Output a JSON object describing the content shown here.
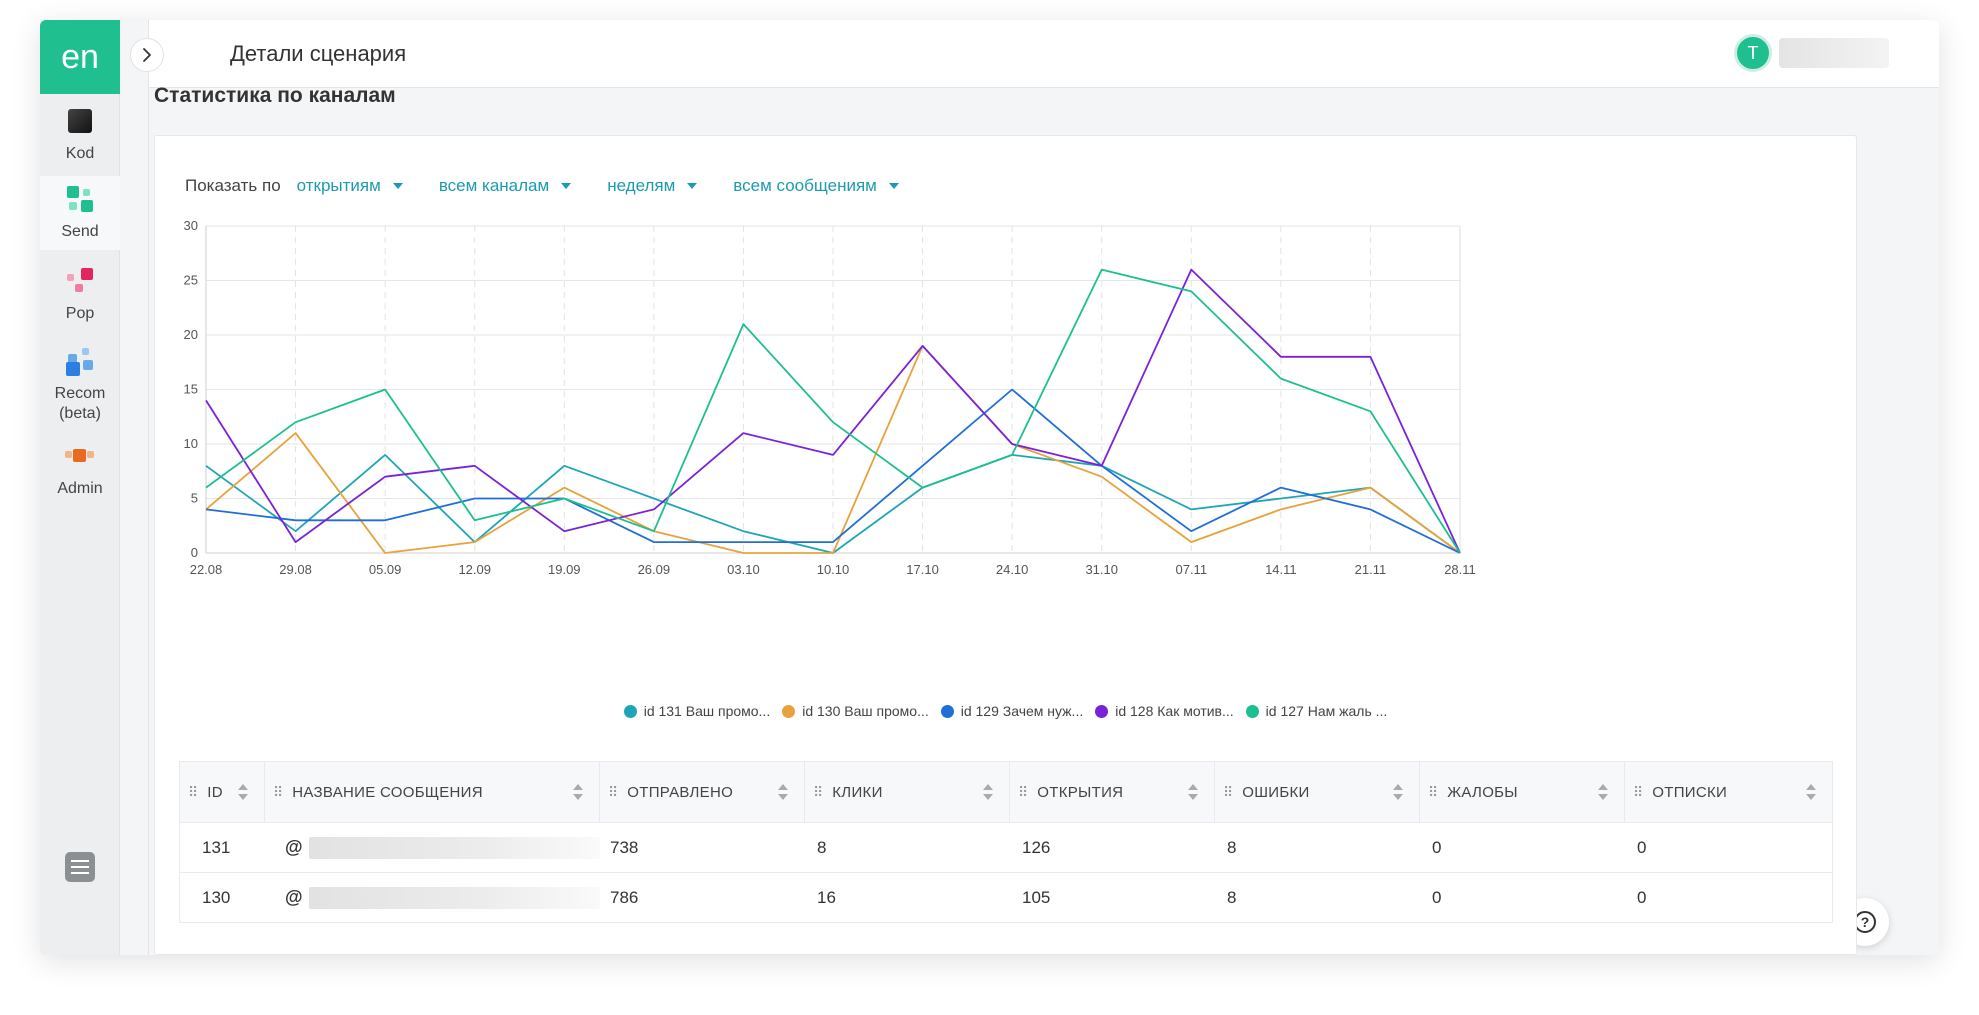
{
  "app": {
    "logo": "en",
    "page_title": "Детали сценария",
    "avatar_letter": "T"
  },
  "sidebar": {
    "items": [
      {
        "label": "Kod",
        "icon": "kod-icon"
      },
      {
        "label": "Send",
        "icon": "send-icon"
      },
      {
        "label": "Pop",
        "icon": "pop-icon"
      },
      {
        "label": "Recom\n(beta)",
        "icon": "recom-icon"
      },
      {
        "label": "Admin",
        "icon": "admin-icon"
      }
    ]
  },
  "section": {
    "title": "Статистика по каналам"
  },
  "filters": {
    "label": "Показать по",
    "metric": "открытиям",
    "channel": "всем каналам",
    "period": "неделям",
    "messages": "всем сообщениям"
  },
  "chart_data": {
    "type": "line",
    "x": [
      "22.08",
      "29.08",
      "05.09",
      "12.09",
      "19.09",
      "26.09",
      "03.10",
      "10.10",
      "17.10",
      "24.10",
      "31.10",
      "07.11",
      "14.11",
      "21.11",
      "28.11"
    ],
    "ylim": [
      0,
      30
    ],
    "yticks": [
      0,
      5,
      10,
      15,
      20,
      25,
      30
    ],
    "grid": true,
    "legend_position": "bottom",
    "series": [
      {
        "name": "id 131 Ваш промо...",
        "color": "#1fa5b8",
        "values": [
          8,
          2,
          9,
          1,
          8,
          5,
          2,
          0,
          6,
          9,
          8,
          4,
          5,
          6,
          0
        ]
      },
      {
        "name": "id 130 Ваш промо...",
        "color": "#e8a23c",
        "values": [
          4,
          11,
          0,
          1,
          6,
          2,
          0,
          0,
          19,
          10,
          7,
          1,
          4,
          6,
          0
        ]
      },
      {
        "name": "id 129 Зачем нуж...",
        "color": "#1f6fd6",
        "values": [
          4,
          3,
          3,
          5,
          5,
          1,
          1,
          1,
          8,
          15,
          8,
          2,
          6,
          4,
          0
        ]
      },
      {
        "name": "id 128 Как мотив...",
        "color": "#7a22d9",
        "values": [
          14,
          1,
          7,
          8,
          2,
          4,
          11,
          9,
          19,
          10,
          8,
          26,
          18,
          18,
          0
        ]
      },
      {
        "name": "id 127 Нам жаль ...",
        "color": "#1dbf90",
        "values": [
          6,
          12,
          15,
          3,
          5,
          2,
          21,
          12,
          6,
          9,
          26,
          24,
          16,
          13,
          0
        ]
      }
    ]
  },
  "table": {
    "columns": [
      "ID",
      "НАЗВАНИЕ СООБЩЕНИЯ",
      "ОТПРАВЛЕНО",
      "КЛИКИ",
      "ОТКРЫТИЯ",
      "ОШИБКИ",
      "ЖАЛОБЫ",
      "ОТПИСКИ"
    ],
    "rows": [
      {
        "id": "131",
        "prefix": "@",
        "sent": "738",
        "clicks": "8",
        "opens": "126",
        "errors": "8",
        "complaints": "0",
        "unsubs": "0"
      },
      {
        "id": "130",
        "prefix": "@",
        "sent": "786",
        "clicks": "16",
        "opens": "105",
        "errors": "8",
        "complaints": "0",
        "unsubs": "0"
      }
    ]
  },
  "help": {
    "icon": "help-icon",
    "glyph": "?"
  }
}
